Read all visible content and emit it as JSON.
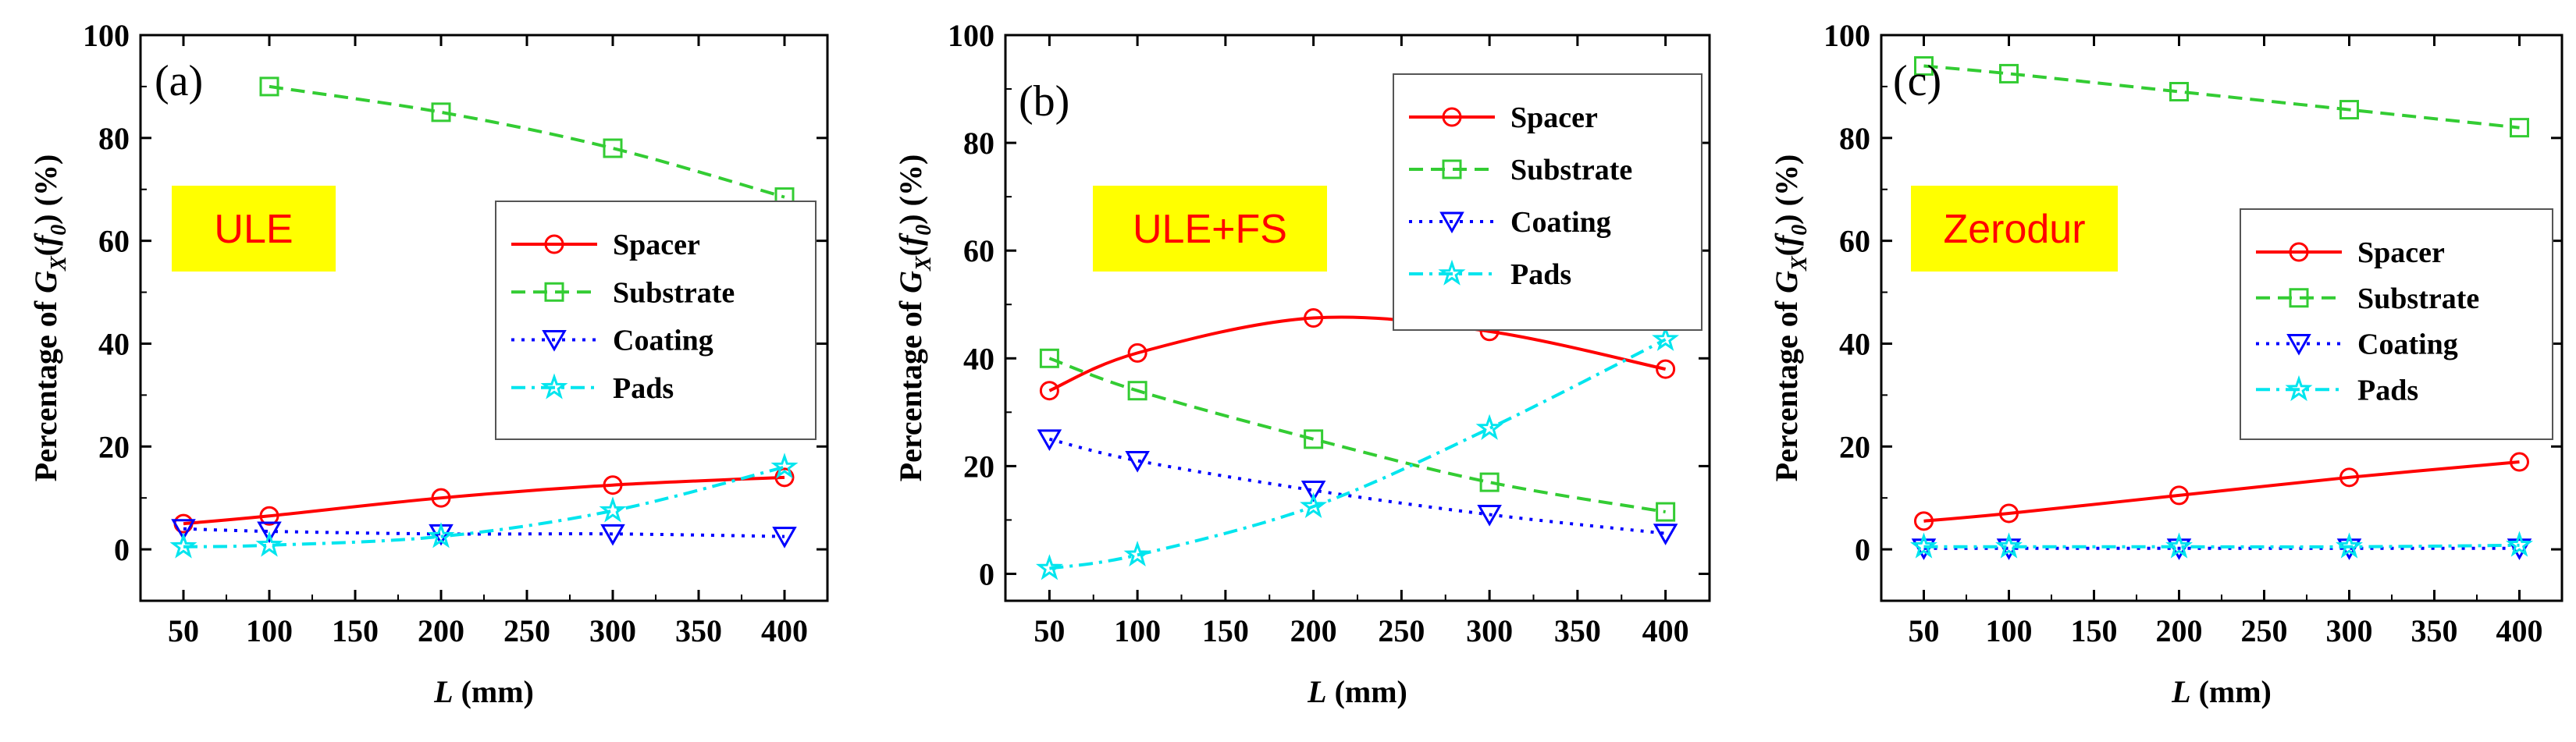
{
  "chart_data": [
    {
      "type": "line",
      "panel_label": "(a)",
      "material": "ULE",
      "xlabel_italic": "L",
      "xlabel_rest": " (mm)",
      "ylabel": {
        "prefix": "Percentage of ",
        "g": "G",
        "sub_x": "X",
        "open": "(",
        "f": "f",
        "sub_0": "0",
        "close": ") (%)"
      },
      "xlim": [
        25,
        425
      ],
      "ylim": [
        -10,
        100
      ],
      "xticks": [
        50,
        100,
        150,
        200,
        250,
        300,
        350,
        400
      ],
      "yticks": [
        0,
        20,
        40,
        60,
        80,
        100
      ],
      "legend_position": "center-right",
      "series": [
        {
          "name": "Spacer",
          "color": "#ff0000",
          "marker": "circle",
          "dash": "solid",
          "x": [
            50,
            100,
            200,
            300,
            400
          ],
          "y": [
            5,
            6.5,
            10,
            12.5,
            14
          ]
        },
        {
          "name": "Substrate",
          "color": "#33cc33",
          "marker": "square",
          "dash": "dash",
          "x": [
            100,
            200,
            300,
            400
          ],
          "y": [
            90,
            85,
            78,
            68.5
          ]
        },
        {
          "name": "Coating",
          "color": "#0000ff",
          "marker": "triangle-down",
          "dash": "dot",
          "x": [
            50,
            100,
            200,
            300,
            400
          ],
          "y": [
            4,
            3.5,
            3,
            3,
            2.5
          ]
        },
        {
          "name": "Pads",
          "color": "#00e5ee",
          "marker": "star",
          "dash": "dashdot",
          "x": [
            50,
            100,
            200,
            300,
            400
          ],
          "y": [
            0.5,
            0.8,
            2.5,
            7.5,
            16
          ]
        }
      ]
    },
    {
      "type": "line",
      "panel_label": "(b)",
      "material": "ULE+FS",
      "xlabel_italic": "L",
      "xlabel_rest": " (mm)",
      "ylabel": {
        "prefix": "Percentage of ",
        "g": "G",
        "sub_x": "X",
        "open": "(",
        "f": "f",
        "sub_0": "0",
        "close": ") (%)"
      },
      "xlim": [
        25,
        425
      ],
      "ylim": [
        -5,
        100
      ],
      "xticks": [
        50,
        100,
        150,
        200,
        250,
        300,
        350,
        400
      ],
      "yticks": [
        0,
        20,
        40,
        60,
        80,
        100
      ],
      "legend_position": "top-right",
      "series": [
        {
          "name": "Spacer",
          "color": "#ff0000",
          "marker": "circle",
          "dash": "solid",
          "x": [
            50,
            100,
            200,
            300,
            400
          ],
          "y": [
            34,
            41,
            47.5,
            45,
            38
          ]
        },
        {
          "name": "Substrate",
          "color": "#33cc33",
          "marker": "square",
          "dash": "dash",
          "x": [
            50,
            100,
            200,
            300,
            400
          ],
          "y": [
            40,
            34,
            25,
            17,
            11.5
          ]
        },
        {
          "name": "Coating",
          "color": "#0000ff",
          "marker": "triangle-down",
          "dash": "dot",
          "x": [
            50,
            100,
            200,
            300,
            400
          ],
          "y": [
            25,
            21,
            15.5,
            11,
            7.5
          ]
        },
        {
          "name": "Pads",
          "color": "#00e5ee",
          "marker": "star",
          "dash": "dashdot",
          "x": [
            50,
            100,
            200,
            300,
            400
          ],
          "y": [
            1,
            3.5,
            12.5,
            27,
            43.5
          ]
        }
      ]
    },
    {
      "type": "line",
      "panel_label": "(c)",
      "material": "Zerodur",
      "xlabel_italic": "L",
      "xlabel_rest": " (mm)",
      "ylabel": {
        "prefix": "Percentage of ",
        "g": "G",
        "sub_x": "X",
        "open": "(",
        "f": "f",
        "sub_0": "0",
        "close": ") (%)"
      },
      "xlim": [
        25,
        425
      ],
      "ylim": [
        -10,
        100
      ],
      "xticks": [
        50,
        100,
        150,
        200,
        250,
        300,
        350,
        400
      ],
      "yticks": [
        0,
        20,
        40,
        60,
        80,
        100
      ],
      "legend_position": "center-right",
      "series": [
        {
          "name": "Spacer",
          "color": "#ff0000",
          "marker": "circle",
          "dash": "solid",
          "x": [
            50,
            100,
            200,
            300,
            400
          ],
          "y": [
            5.5,
            7,
            10.5,
            14,
            17
          ]
        },
        {
          "name": "Substrate",
          "color": "#33cc33",
          "marker": "square",
          "dash": "dash",
          "x": [
            50,
            100,
            200,
            300,
            400
          ],
          "y": [
            94,
            92.5,
            89,
            85.5,
            82
          ]
        },
        {
          "name": "Coating",
          "color": "#0000ff",
          "marker": "triangle-down",
          "dash": "dot",
          "x": [
            50,
            100,
            200,
            300,
            400
          ],
          "y": [
            0.2,
            0.2,
            0.2,
            0.2,
            0.2
          ]
        },
        {
          "name": "Pads",
          "color": "#00e5ee",
          "marker": "star",
          "dash": "dashdot",
          "x": [
            50,
            100,
            200,
            300,
            400
          ],
          "y": [
            0.5,
            0.5,
            0.5,
            0.5,
            0.8
          ]
        }
      ]
    }
  ]
}
